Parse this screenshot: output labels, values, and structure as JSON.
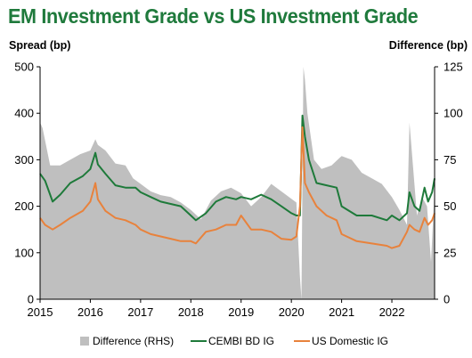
{
  "chart_data": {
    "type": "line",
    "title": "EM Investment Grade vs US Investment Grade",
    "ylabel": "Spread (bp)",
    "y2label": "Difference (bp)",
    "ylim": [
      0,
      500
    ],
    "y2lim": [
      0,
      125
    ],
    "yticks": [
      "0",
      "100",
      "200",
      "300",
      "400",
      "500"
    ],
    "y2ticks": [
      "0",
      "25",
      "50",
      "75",
      "100",
      "125"
    ],
    "xlim": [
      2015.0,
      2022.85
    ],
    "xticks": [
      "2015",
      "2016",
      "2017",
      "2018",
      "2019",
      "2020",
      "2021",
      "2022"
    ],
    "legend_position": "bottom",
    "series": [
      {
        "name": "Difference (RHS)",
        "type": "area",
        "axis": "right",
        "color": "#bfbfbf",
        "x": [
          2015.0,
          2015.05,
          2015.2,
          2015.4,
          2015.6,
          2015.8,
          2016.0,
          2016.1,
          2016.15,
          2016.3,
          2016.5,
          2016.7,
          2016.85,
          2017.0,
          2017.2,
          2017.4,
          2017.6,
          2017.8,
          2018.0,
          2018.2,
          2018.4,
          2018.6,
          2018.8,
          2019.0,
          2019.2,
          2019.4,
          2019.6,
          2019.8,
          2020.0,
          2020.1,
          2020.17,
          2020.2,
          2020.24,
          2020.27,
          2020.32,
          2020.45,
          2020.6,
          2020.8,
          2021.0,
          2021.2,
          2021.4,
          2021.6,
          2021.8,
          2022.0,
          2022.15,
          2022.3,
          2022.35,
          2022.5,
          2022.6,
          2022.7,
          2022.78,
          2022.85
        ],
        "values": [
          95,
          92,
          72,
          72,
          75,
          78,
          80,
          86,
          83,
          80,
          73,
          72,
          65,
          62,
          58,
          56,
          55,
          52,
          48,
          43,
          53,
          58,
          60,
          57,
          50,
          55,
          62,
          58,
          54,
          52,
          12,
          0,
          125,
          118,
          100,
          75,
          70,
          72,
          77,
          75,
          68,
          65,
          62,
          55,
          48,
          40,
          95,
          45,
          55,
          50,
          20,
          60
        ]
      },
      {
        "name": "CEMBI BD IG",
        "type": "line",
        "axis": "left",
        "color": "#1e7a3a",
        "x": [
          2015.0,
          2015.1,
          2015.25,
          2015.4,
          2015.6,
          2015.85,
          2016.0,
          2016.1,
          2016.15,
          2016.3,
          2016.5,
          2016.7,
          2016.9,
          2017.0,
          2017.2,
          2017.4,
          2017.6,
          2017.8,
          2018.0,
          2018.1,
          2018.3,
          2018.5,
          2018.7,
          2018.9,
          2019.0,
          2019.2,
          2019.4,
          2019.6,
          2019.8,
          2020.0,
          2020.1,
          2020.17,
          2020.22,
          2020.27,
          2020.35,
          2020.5,
          2020.7,
          2020.9,
          2021.0,
          2021.3,
          2021.6,
          2021.9,
          2022.0,
          2022.15,
          2022.3,
          2022.35,
          2022.45,
          2022.55,
          2022.65,
          2022.72,
          2022.8,
          2022.85
        ],
        "values": [
          270,
          255,
          210,
          225,
          250,
          265,
          280,
          315,
          290,
          270,
          245,
          240,
          240,
          230,
          220,
          210,
          205,
          200,
          180,
          170,
          185,
          210,
          220,
          215,
          220,
          215,
          225,
          215,
          200,
          185,
          180,
          180,
          395,
          350,
          300,
          250,
          245,
          240,
          200,
          180,
          180,
          170,
          180,
          170,
          185,
          230,
          200,
          190,
          240,
          210,
          230,
          260
        ]
      },
      {
        "name": "US Domestic IG",
        "type": "line",
        "axis": "left",
        "color": "#e8823c",
        "x": [
          2015.0,
          2015.1,
          2015.25,
          2015.4,
          2015.6,
          2015.85,
          2016.0,
          2016.1,
          2016.15,
          2016.3,
          2016.5,
          2016.7,
          2016.9,
          2017.0,
          2017.2,
          2017.4,
          2017.6,
          2017.8,
          2018.0,
          2018.1,
          2018.3,
          2018.5,
          2018.7,
          2018.9,
          2019.0,
          2019.2,
          2019.4,
          2019.6,
          2019.8,
          2020.0,
          2020.1,
          2020.17,
          2020.22,
          2020.27,
          2020.35,
          2020.5,
          2020.7,
          2020.9,
          2021.0,
          2021.3,
          2021.6,
          2021.9,
          2022.0,
          2022.15,
          2022.3,
          2022.35,
          2022.45,
          2022.55,
          2022.65,
          2022.72,
          2022.8,
          2022.85
        ],
        "values": [
          175,
          160,
          150,
          160,
          175,
          190,
          210,
          250,
          215,
          190,
          175,
          170,
          160,
          150,
          140,
          135,
          130,
          125,
          125,
          120,
          145,
          150,
          160,
          160,
          180,
          150,
          150,
          145,
          130,
          128,
          135,
          200,
          370,
          250,
          230,
          200,
          180,
          170,
          140,
          125,
          120,
          115,
          110,
          115,
          145,
          160,
          150,
          145,
          175,
          160,
          170,
          185
        ]
      }
    ]
  }
}
